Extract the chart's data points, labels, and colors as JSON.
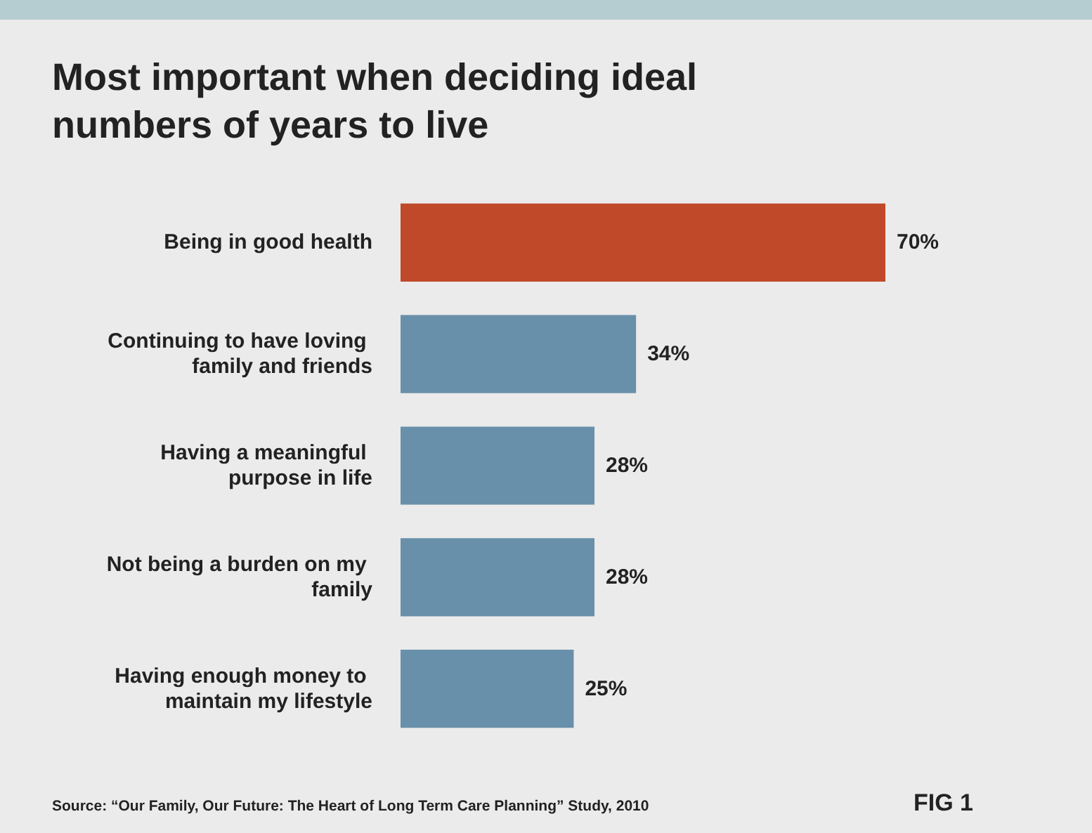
{
  "chart_data": {
    "type": "bar",
    "orientation": "horizontal",
    "title": "Most important when deciding ideal numbers of years to live",
    "categories": [
      "Being in good health",
      "Continuing to have loving family and friends",
      "Having a meaningful purpose in life",
      "Not being a burden on my family",
      "Having enough money to maintain my lifestyle"
    ],
    "values": [
      70,
      34,
      28,
      28,
      25
    ],
    "colors": [
      "#c0492a",
      "#6990aa",
      "#6990aa",
      "#6990aa",
      "#6990aa"
    ],
    "value_labels": [
      "70%",
      "34%",
      "28%",
      "28%",
      "25%"
    ],
    "annotations": [
      "Source: “Our Family, Our Future: The Heart of Long Term Care Planning” Study, 2010",
      "FIG 1"
    ]
  }
}
